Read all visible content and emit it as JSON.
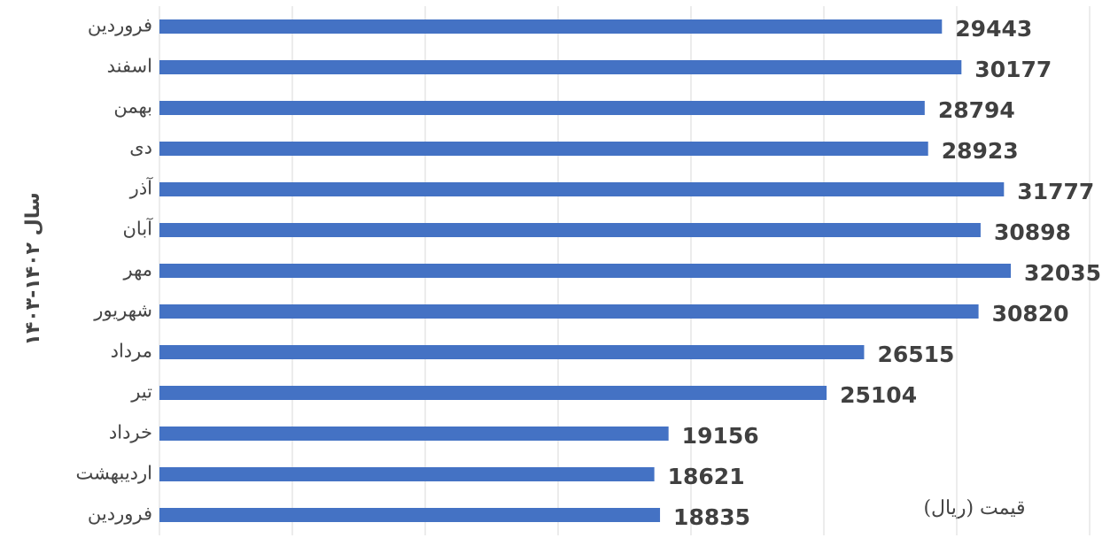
{
  "chart_data": {
    "type": "barh",
    "y_label": "سال ۱۴۰۲-۱۴۰۳",
    "annotation": "قیمت (ریال)",
    "categories": [
      "فروردین",
      "اسفند",
      "بهمن",
      "دی",
      "آذر",
      "آبان",
      "مهر",
      "شهریور",
      "مرداد",
      "تیر",
      "خرداد",
      "اردیبهشت",
      "فروردین"
    ],
    "values": [
      29443,
      30177,
      28794,
      28923,
      31777,
      30898,
      32035,
      30820,
      26515,
      25104,
      19156,
      18621,
      18835
    ],
    "color": "#4472c4",
    "xlim": [
      0,
      35000
    ],
    "xticks": [
      0,
      5000,
      10000,
      15000,
      20000,
      25000,
      30000,
      35000
    ],
    "grid": true
  }
}
